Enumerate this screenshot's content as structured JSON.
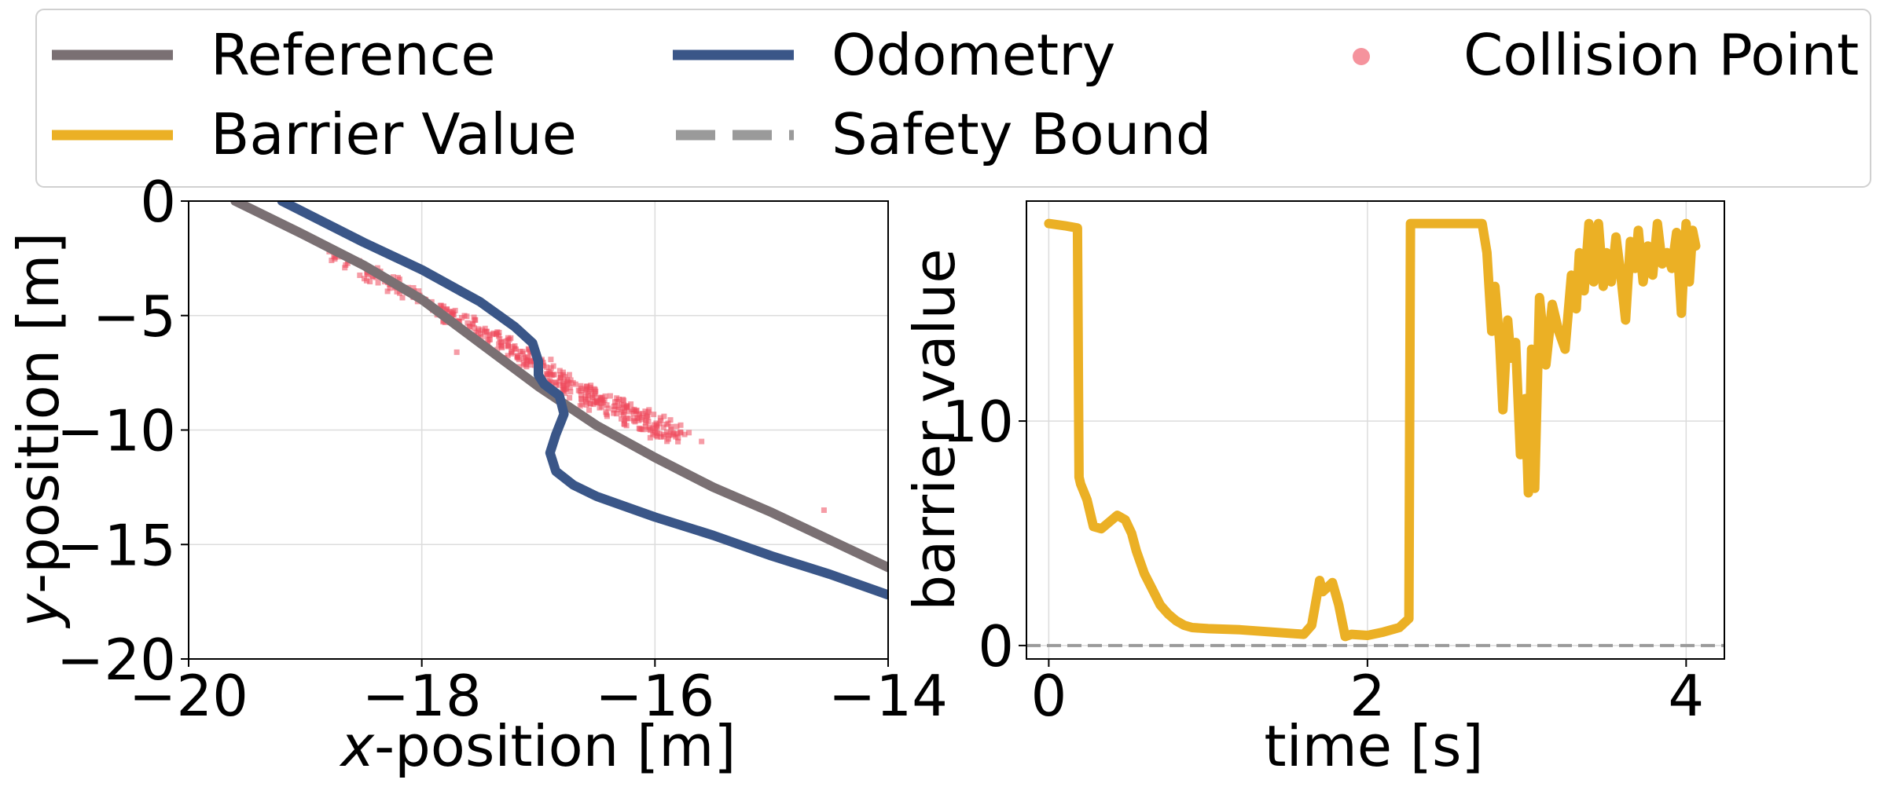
{
  "legend": {
    "items": [
      {
        "key": "reference",
        "label": "Reference",
        "color": "#7a7073",
        "style": "solid-line"
      },
      {
        "key": "odometry",
        "label": "Odometry",
        "color": "#3a5688",
        "style": "solid-line"
      },
      {
        "key": "collision",
        "label": "Collision Point",
        "color": "#ef4b5c",
        "style": "marker"
      },
      {
        "key": "barrier",
        "label": "Barrier Value",
        "color": "#ebb025",
        "style": "solid-line"
      },
      {
        "key": "safety",
        "label": "Safety Bound",
        "color": "#9a9a9a",
        "style": "dashed-line"
      }
    ],
    "placement": "top-center"
  },
  "chart_data": [
    {
      "type": "line",
      "xlabel_italic": "x",
      "xlabel_rest": "-position [m]",
      "ylabel_italic": "y",
      "ylabel_rest": "-position [m]",
      "xlim": [
        -20,
        -14
      ],
      "ylim": [
        -20,
        0
      ],
      "xticks": [
        -20,
        -18,
        -16,
        -14
      ],
      "yticks": [
        0,
        -5,
        -10,
        -15,
        -20
      ],
      "xtick_labels": [
        "−20",
        "−18",
        "−16",
        "−14"
      ],
      "ytick_labels": [
        "0",
        "−5",
        "−10",
        "−15",
        "−20"
      ],
      "grid": true,
      "series": [
        {
          "name": "Reference",
          "color": "#7a7073",
          "x": [
            -19.6,
            -19.0,
            -18.5,
            -18.0,
            -17.5,
            -17.0,
            -16.5,
            -16.0,
            -15.5,
            -15.0,
            -14.5,
            -14.0
          ],
          "y": [
            0.0,
            -1.5,
            -2.8,
            -4.3,
            -6.2,
            -8.1,
            -9.8,
            -11.2,
            -12.5,
            -13.6,
            -14.8,
            -16.0
          ]
        },
        {
          "name": "Odometry",
          "color": "#3a5688",
          "x": [
            -19.2,
            -18.5,
            -18.0,
            -17.5,
            -17.2,
            -17.05,
            -17.0,
            -17.0,
            -16.95,
            -16.82,
            -16.78,
            -16.85,
            -16.9,
            -16.85,
            -16.7,
            -16.5,
            -16.0,
            -15.5,
            -15.0,
            -14.5,
            -14.0
          ],
          "y": [
            0.0,
            -1.8,
            -3.0,
            -4.4,
            -5.5,
            -6.2,
            -7.0,
            -7.6,
            -8.0,
            -8.5,
            -9.3,
            -10.2,
            -11.0,
            -11.8,
            -12.4,
            -12.9,
            -13.8,
            -14.6,
            -15.5,
            -16.3,
            -17.2
          ]
        },
        {
          "name": "Collision Point",
          "color": "#ef4b5c",
          "kind": "scatter",
          "clusters": [
            {
              "x0": -18.7,
              "y0": -2.5,
              "x1": -17.4,
              "y1": -6.0,
              "n": 130,
              "spread": 0.45
            },
            {
              "x0": -17.4,
              "y0": -6.0,
              "x1": -16.6,
              "y1": -8.6,
              "n": 140,
              "spread": 0.5
            },
            {
              "x0": -16.6,
              "y0": -8.6,
              "x1": -15.8,
              "y1": -10.4,
              "n": 160,
              "spread": 0.8
            }
          ],
          "outliers": [
            {
              "x": -15.6,
              "y": -10.5
            },
            {
              "x": -14.55,
              "y": -13.5
            },
            {
              "x": -17.7,
              "y": -6.6
            },
            {
              "x": -17.8,
              "y": -5.3
            }
          ]
        }
      ]
    },
    {
      "type": "line",
      "xlabel": "time [s]",
      "ylabel": "barrier value",
      "xlim": [
        -0.14,
        4.24
      ],
      "ylim": [
        -0.6,
        19.8
      ],
      "xticks": [
        0,
        2,
        4
      ],
      "yticks": [
        0,
        10
      ],
      "xtick_labels": [
        "0",
        "2",
        "4"
      ],
      "ytick_labels": [
        "0",
        "10"
      ],
      "grid": true,
      "series": [
        {
          "name": "Barrier Value",
          "color": "#ebb025",
          "x": [
            0.0,
            0.1,
            0.18,
            0.19,
            0.2,
            0.24,
            0.28,
            0.33,
            0.38,
            0.43,
            0.48,
            0.52,
            0.55,
            0.6,
            0.65,
            0.7,
            0.75,
            0.8,
            0.85,
            0.9,
            1.0,
            1.2,
            1.4,
            1.6,
            1.65,
            1.7,
            1.72,
            1.78,
            1.82,
            1.86,
            1.9,
            2.0,
            2.1,
            2.2,
            2.26,
            2.27,
            2.29,
            2.5,
            2.72,
            2.75,
            2.78,
            2.8,
            2.83,
            2.85,
            2.88,
            2.9,
            2.93,
            2.96,
            2.99,
            3.01,
            3.03,
            3.05,
            3.08,
            3.12,
            3.16,
            3.2,
            3.24,
            3.28,
            3.31,
            3.33,
            3.36,
            3.39,
            3.42,
            3.45,
            3.48,
            3.5,
            3.53,
            3.56,
            3.59,
            3.62,
            3.65,
            3.68,
            3.7,
            3.73,
            3.76,
            3.79,
            3.82,
            3.85,
            3.88,
            3.91,
            3.94,
            3.97,
            4.0,
            4.02,
            4.04,
            4.06
          ],
          "y": [
            18.8,
            18.7,
            18.6,
            7.5,
            7.2,
            6.5,
            5.3,
            5.2,
            5.5,
            5.8,
            5.6,
            5.0,
            4.2,
            3.2,
            2.5,
            1.8,
            1.4,
            1.1,
            0.9,
            0.8,
            0.75,
            0.7,
            0.6,
            0.5,
            0.9,
            2.9,
            2.4,
            2.8,
            1.8,
            0.4,
            0.5,
            0.45,
            0.6,
            0.8,
            1.2,
            18.8,
            18.8,
            18.8,
            18.8,
            17.5,
            14.0,
            16.0,
            13.5,
            10.5,
            14.5,
            12.8,
            13.5,
            8.5,
            11.0,
            6.8,
            13.2,
            7.0,
            15.5,
            12.5,
            15.2,
            14.0,
            13.2,
            16.5,
            15.0,
            17.5,
            15.8,
            18.8,
            16.2,
            18.8,
            16.0,
            17.5,
            16.2,
            18.2,
            16.5,
            14.5,
            18.0,
            16.8,
            18.5,
            16.2,
            17.8,
            16.5,
            18.8,
            17.0,
            17.5,
            16.8,
            18.4,
            14.8,
            18.8,
            16.2,
            18.5,
            17.8
          ]
        },
        {
          "name": "Safety Bound",
          "color": "#9a9a9a",
          "kind": "hline",
          "y": 0
        }
      ]
    }
  ]
}
